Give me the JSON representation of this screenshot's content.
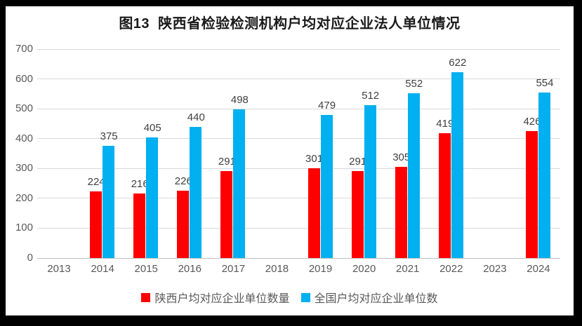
{
  "chart_data": {
    "type": "bar",
    "title": "图13  陕西省检验检测机构户均对应企业法人单位情况",
    "categories": [
      "2013",
      "2014",
      "2015",
      "2016",
      "2017",
      "2018",
      "2019",
      "2020",
      "2021",
      "2022",
      "2023",
      "2024"
    ],
    "series": [
      {
        "name": "陕西户均对应企业单位数量",
        "color": "#FF0000",
        "values": [
          null,
          224,
          216,
          226,
          291,
          null,
          301,
          291,
          305,
          419,
          null,
          426
        ]
      },
      {
        "name": "全国户均对应企业单位数",
        "color": "#00B0F0",
        "values": [
          null,
          375,
          405,
          440,
          498,
          null,
          479,
          512,
          552,
          622,
          null,
          554
        ]
      }
    ],
    "ylim": [
      0,
      700
    ],
    "yticks": [
      0,
      100,
      200,
      300,
      400,
      500,
      600,
      700
    ],
    "grid": "horizontal",
    "legend_position": "bottom",
    "data_labels": true,
    "xlabel": "",
    "ylabel": ""
  },
  "colors": {
    "frame_background": "#000000",
    "panel_background": "#FFFFFF",
    "gridline": "#D9D9D9",
    "axis_line": "#BFBFBF",
    "tick_text": "#595959",
    "data_label_text": "#404040",
    "legend_text": "#595959",
    "title_text": "#1A1A1A"
  }
}
